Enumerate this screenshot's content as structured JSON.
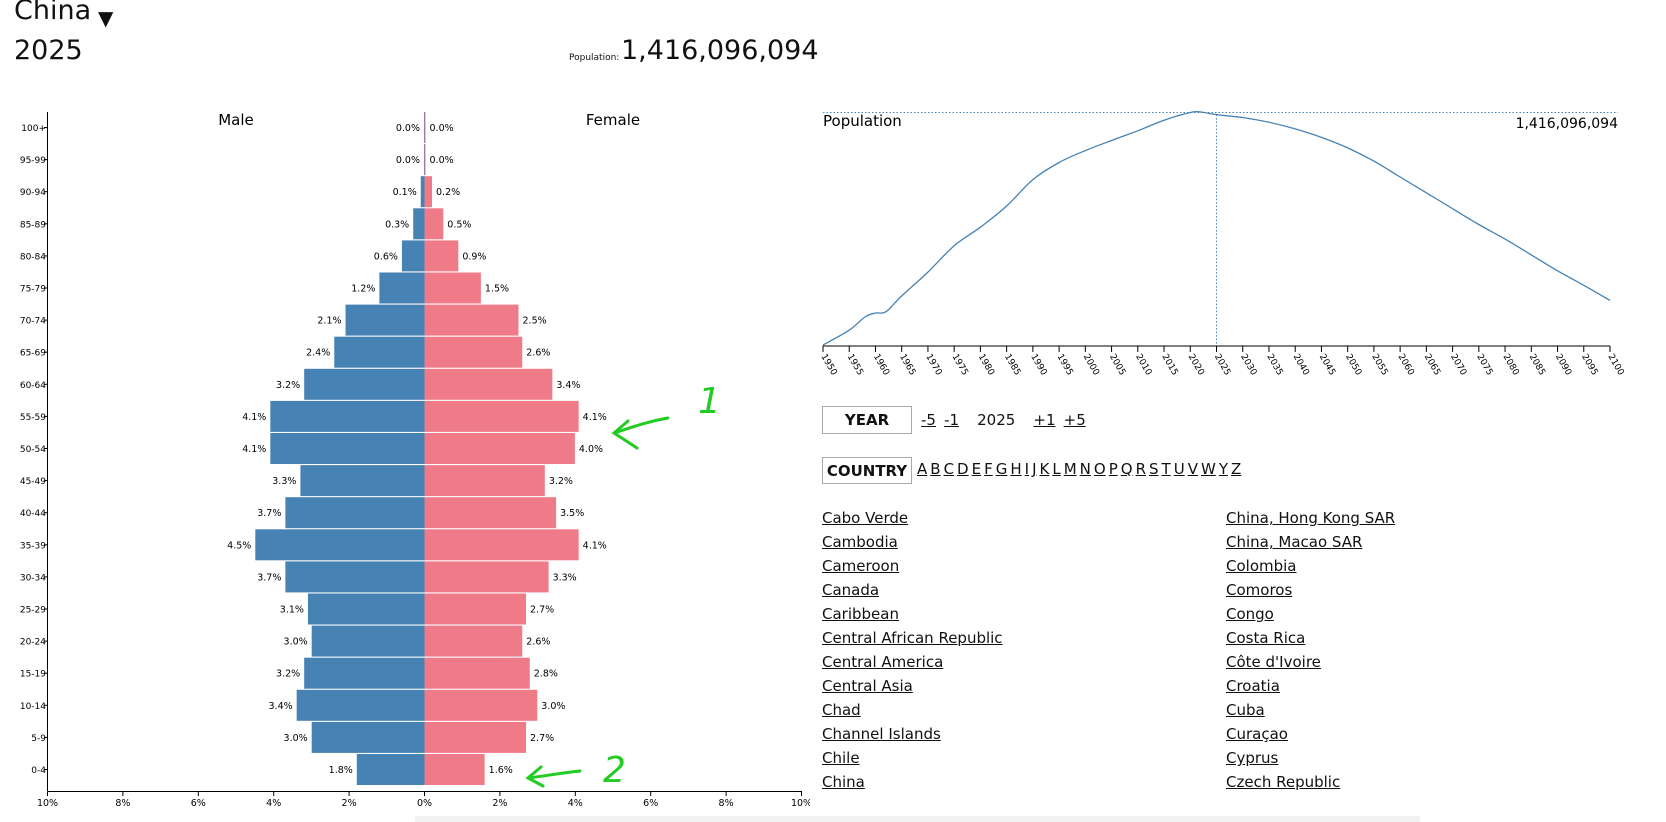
{
  "header": {
    "country": "China",
    "year": "2025",
    "population_label": "Population:",
    "population_value": "1,416,096,094"
  },
  "pyramid": {
    "male_label": "Male",
    "female_label": "Female",
    "x_ticks": [
      "10%",
      "8%",
      "6%",
      "4%",
      "2%",
      "0%",
      "2%",
      "4%",
      "6%",
      "8%",
      "10%"
    ],
    "colors": {
      "male": "#4682b4",
      "female": "#f07b88"
    }
  },
  "population_chart": {
    "label": "Population",
    "value_label": "1,416,096,094",
    "color": "#4682b4"
  },
  "controls": {
    "year_button": "YEAR",
    "minus5": "-5",
    "minus1": "-1",
    "current_year": "2025",
    "plus1": "+1",
    "plus5": "+5",
    "country_button": "COUNTRY",
    "letters": [
      "A",
      "B",
      "C",
      "D",
      "E",
      "F",
      "G",
      "H",
      "I",
      "J",
      "K",
      "L",
      "M",
      "N",
      "O",
      "P",
      "Q",
      "R",
      "S",
      "T",
      "U",
      "V",
      "W",
      "Y",
      "Z"
    ]
  },
  "country_list": {
    "col1": [
      "Cabo Verde",
      "Cambodia",
      "Cameroon",
      "Canada",
      "Caribbean",
      "Central African Republic",
      "Central America",
      "Central Asia",
      "Chad",
      "Channel Islands",
      "Chile",
      "China"
    ],
    "col2": [
      "China, Hong Kong SAR",
      "China, Macao SAR",
      "Colombia",
      "Comoros",
      "Congo",
      "Costa Rica",
      "Côte d'Ivoire",
      "Croatia",
      "Cuba",
      "Curaçao",
      "Cyprus",
      "Czech Republic"
    ]
  },
  "annotations": {
    "arrow_1_label": "1",
    "arrow_2_label": "2",
    "color": "#22cc22"
  },
  "chart_data": [
    {
      "type": "bar",
      "orientation": "horizontal",
      "categories": [
        "100+",
        "95-99",
        "90-94",
        "85-89",
        "80-84",
        "75-79",
        "70-74",
        "65-69",
        "60-64",
        "55-59",
        "50-54",
        "45-49",
        "40-44",
        "35-39",
        "30-34",
        "25-29",
        "20-24",
        "15-19",
        "10-14",
        "5-9",
        "0-4"
      ],
      "series": [
        {
          "name": "Male",
          "values": [
            0.0,
            0.0,
            0.1,
            0.3,
            0.6,
            1.2,
            2.1,
            2.4,
            3.2,
            4.1,
            4.1,
            3.3,
            3.7,
            4.5,
            3.7,
            3.1,
            3.0,
            3.2,
            3.4,
            3.0,
            1.8
          ],
          "labels": [
            "0.0%",
            "0.0%",
            "0.1%",
            "0.3%",
            "0.6%",
            "1.2%",
            "2.1%",
            "2.4%",
            "3.2%",
            "4.1%",
            "4.1%",
            "3.3%",
            "3.7%",
            "4.5%",
            "3.7%",
            "3.1%",
            "3.0%",
            "3.2%",
            "3.4%",
            "3.0%",
            "1.8%"
          ]
        },
        {
          "name": "Female",
          "values": [
            0.0,
            0.0,
            0.2,
            0.5,
            0.9,
            1.5,
            2.5,
            2.6,
            3.4,
            4.1,
            4.0,
            3.2,
            3.5,
            4.1,
            3.3,
            2.7,
            2.6,
            2.8,
            3.0,
            2.7,
            1.6
          ],
          "labels": [
            "0.0%",
            "0.0%",
            "0.2%",
            "0.5%",
            "0.9%",
            "1.5%",
            "2.5%",
            "2.6%",
            "3.4%",
            "4.1%",
            "4.0%",
            "3.2%",
            "3.5%",
            "4.1%",
            "3.3%",
            "2.7%",
            "2.6%",
            "2.8%",
            "3.0%",
            "2.7%",
            "1.6%"
          ]
        }
      ],
      "xlim": [
        -10,
        10
      ],
      "grid": false
    },
    {
      "type": "line",
      "series": [
        {
          "name": "Population",
          "x": [
            1950,
            1955,
            1958,
            1960,
            1962,
            1965,
            1970,
            1975,
            1980,
            1985,
            1990,
            1995,
            2000,
            2005,
            2010,
            2015,
            2020,
            2022,
            2025,
            2030,
            2035,
            2040,
            2045,
            2050,
            2055,
            2060,
            2065,
            2070,
            2075,
            2080,
            2085,
            2090,
            2095,
            2100
          ],
          "y": [
            544,
            600,
            650,
            665,
            670,
            730,
            820,
            920,
            990,
            1070,
            1170,
            1235,
            1280,
            1318,
            1355,
            1395,
            1424,
            1426,
            1416,
            1405,
            1387,
            1362,
            1330,
            1290,
            1240,
            1180,
            1120,
            1060,
            1000,
            945,
            885,
            825,
            770,
            713
          ]
        }
      ],
      "x_ticks": [
        "1950",
        "1955",
        "1960",
        "1965",
        "1970",
        "1975",
        "1980",
        "1985",
        "1990",
        "1995",
        "2000",
        "2005",
        "2010",
        "2015",
        "2020",
        "2025",
        "2030",
        "2035",
        "2040",
        "2045",
        "2050",
        "2055",
        "2060",
        "2065",
        "2070",
        "2075",
        "2080",
        "2085",
        "2090",
        "2095",
        "2100"
      ],
      "xlim": [
        1950,
        2100
      ],
      "marker_x": 2025,
      "grid": false
    }
  ]
}
